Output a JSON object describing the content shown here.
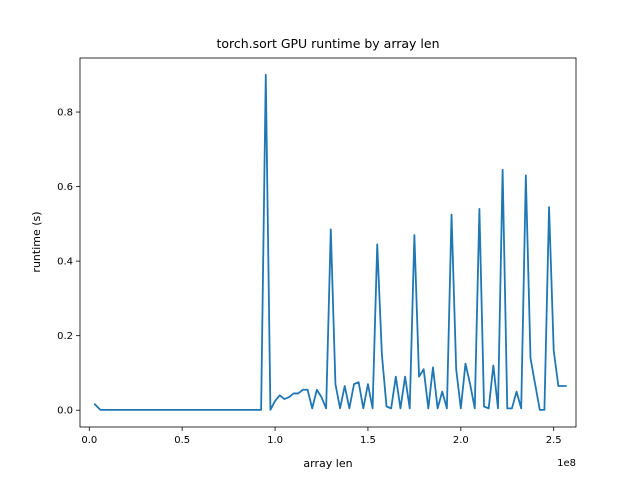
{
  "chart_data": {
    "type": "line",
    "title": "torch.sort GPU runtime by array len",
    "xlabel": "array len",
    "ylabel": "runtime (s)",
    "x_multiplier_label": "1e8",
    "xlim": [
      -0.05,
      2.62
    ],
    "ylim": [
      -0.045,
      0.945
    ],
    "x_scale": 100000000,
    "xticks": [
      0.0,
      0.5,
      1.0,
      1.5,
      2.0,
      2.5
    ],
    "xtick_labels": [
      "0.0",
      "0.5",
      "1.0",
      "1.5",
      "2.0",
      "2.5"
    ],
    "yticks": [
      0.0,
      0.2,
      0.4,
      0.6,
      0.8
    ],
    "ytick_labels": [
      "0.0",
      "0.2",
      "0.4",
      "0.6",
      "0.8"
    ],
    "grid": false,
    "colors": {
      "line": "#1f77b4"
    },
    "series": [
      {
        "x": [
          0.03,
          0.06,
          0.1,
          0.2,
          0.3,
          0.4,
          0.5,
          0.6,
          0.7,
          0.8,
          0.9,
          0.925,
          0.95,
          0.975,
          1.0,
          1.025,
          1.05,
          1.075,
          1.1,
          1.125,
          1.15,
          1.175,
          1.2,
          1.225,
          1.25,
          1.275,
          1.3,
          1.325,
          1.35,
          1.375,
          1.4,
          1.425,
          1.45,
          1.475,
          1.5,
          1.525,
          1.55,
          1.575,
          1.6,
          1.625,
          1.65,
          1.675,
          1.7,
          1.725,
          1.75,
          1.775,
          1.8,
          1.825,
          1.85,
          1.875,
          1.9,
          1.925,
          1.95,
          1.975,
          2.0,
          2.025,
          2.05,
          2.075,
          2.1,
          2.125,
          2.15,
          2.175,
          2.2,
          2.225,
          2.25,
          2.275,
          2.3,
          2.325,
          2.35,
          2.375,
          2.4,
          2.425,
          2.45,
          2.475,
          2.5,
          2.525,
          2.55,
          2.565
        ],
        "values": [
          0.016,
          0.001,
          0.001,
          0.001,
          0.001,
          0.001,
          0.001,
          0.001,
          0.001,
          0.001,
          0.001,
          0.001,
          0.9,
          0.001,
          0.025,
          0.04,
          0.03,
          0.035,
          0.045,
          0.045,
          0.055,
          0.055,
          0.005,
          0.055,
          0.035,
          0.005,
          0.485,
          0.07,
          0.005,
          0.065,
          0.005,
          0.07,
          0.075,
          0.005,
          0.07,
          0.005,
          0.445,
          0.15,
          0.01,
          0.005,
          0.09,
          0.005,
          0.09,
          0.005,
          0.47,
          0.09,
          0.11,
          0.005,
          0.115,
          0.005,
          0.05,
          0.005,
          0.525,
          0.11,
          0.005,
          0.125,
          0.07,
          0.005,
          0.54,
          0.01,
          0.005,
          0.12,
          0.005,
          0.645,
          0.005,
          0.005,
          0.05,
          0.005,
          0.63,
          0.14,
          0.07,
          0.001,
          0.001,
          0.545,
          0.16,
          0.065,
          0.065,
          0.065
        ]
      }
    ]
  }
}
